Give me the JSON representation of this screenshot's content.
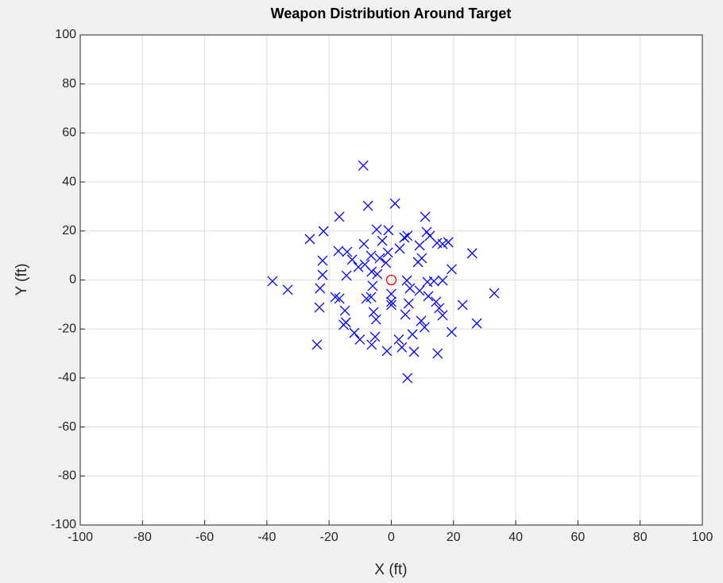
{
  "chart_data": {
    "type": "scatter",
    "title": "Weapon Distribution Around Target",
    "xlabel": "X (ft)",
    "ylabel": "Y (ft)",
    "xlim": [
      -100,
      100
    ],
    "ylim": [
      -100,
      100
    ],
    "xticks": [
      -100,
      -80,
      -60,
      -40,
      -20,
      0,
      20,
      40,
      60,
      80,
      100
    ],
    "yticks": [
      -100,
      -80,
      -60,
      -40,
      -20,
      0,
      20,
      40,
      60,
      80,
      100
    ],
    "grid": true,
    "series": [
      {
        "color": "#0000ff",
        "marker": "x",
        "x": [
          -9,
          -7.5,
          1.2,
          -16.7,
          10.9,
          -26.2,
          -21.8,
          -4.7,
          -0.9,
          4.2,
          11.4,
          12.4,
          5.2,
          -8.8,
          -2.9,
          2.7,
          9.1,
          14.7,
          18.3,
          16.5,
          26,
          -17,
          -14.2,
          -22.1,
          -12.6,
          -6.5,
          -1.1,
          -10.6,
          -8.5,
          -1.7,
          9.8,
          8.6,
          19.4,
          -22.1,
          -14.4,
          -6.3,
          -4.5,
          -38.2,
          -33.3,
          -22.9,
          11.6,
          13.7,
          16.5,
          5,
          0,
          0,
          0,
          6,
          9.1,
          11.9,
          14.4,
          15.4,
          16.5,
          33.1,
          22.9,
          27.5,
          19.4,
          9.6,
          10.7,
          5.6,
          4.5,
          -6.5,
          -8,
          -5.7,
          -18,
          -16.7,
          -14.9,
          -14.6,
          -15.3,
          -23.1,
          -11.9,
          -10.1,
          -5.2,
          -6.3,
          -23.9,
          -1.4,
          2.4,
          3.4,
          6.8,
          7.3,
          14.9,
          5.2,
          -4.9,
          -3.7,
          -6
        ],
        "values": [
          46.7,
          30.3,
          31.2,
          25.8,
          25.8,
          16.7,
          19.9,
          20.6,
          20.3,
          17.3,
          19.6,
          18,
          18,
          14.7,
          16,
          12.8,
          14.1,
          15.1,
          15.4,
          14.7,
          10.9,
          11.8,
          11.5,
          7.9,
          8.3,
          9.9,
          11.2,
          5.3,
          6.3,
          7,
          8.9,
          7.3,
          4.4,
          2.1,
          1.8,
          3.4,
          2.4,
          -0.5,
          -4,
          -3.4,
          -0.8,
          -0.5,
          -0.2,
          -0.2,
          -5.7,
          -8.9,
          -10.2,
          -3.4,
          -4.4,
          -6.6,
          -8.9,
          -11.5,
          -14.4,
          -5.4,
          -10.2,
          -17.7,
          -21.2,
          -16.7,
          -19.3,
          -9.6,
          -14.1,
          -7,
          -7.6,
          -13.1,
          -7,
          -7.6,
          -12.5,
          -17.3,
          -18.3,
          -11.2,
          -21.6,
          -24.3,
          -23.2,
          -26.4,
          -26.4,
          -29,
          -24.3,
          -27.5,
          -22.2,
          -29.3,
          -30,
          -40,
          -16.1,
          8.9,
          -2.4
        ]
      },
      {
        "color": "#ff0000",
        "marker": "o",
        "x": [
          0
        ],
        "values": [
          0
        ]
      }
    ]
  }
}
